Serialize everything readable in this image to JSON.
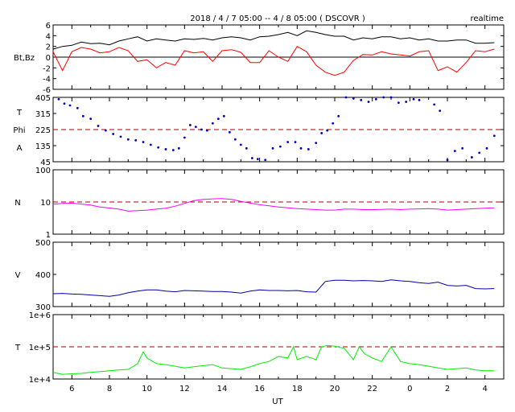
{
  "header": {
    "title": "2018 / 4 / 7   05:00 --  4 / 8   05:00 ( DSCOVR )",
    "mode": "realtime"
  },
  "x_axis": {
    "label": "UT",
    "tick_labels": [
      "6",
      "8",
      "10",
      "12",
      "14",
      "16",
      "18",
      "20",
      "22",
      "0",
      "2",
      "4"
    ]
  },
  "chart_data": [
    {
      "type": "line",
      "panel": "magnetic-field",
      "ylabel": "Bt,Bz",
      "x_range_hours": [
        5,
        29
      ],
      "ylim": [
        -6,
        6
      ],
      "yticks": [
        "6",
        "4",
        "2",
        "0",
        "-2",
        "-4",
        "-6"
      ],
      "reference_line": 0,
      "series": [
        {
          "key": "Bt",
          "color": "#000000",
          "x": [
            5.0,
            5.5,
            6.0,
            6.5,
            7.0,
            7.5,
            8.0,
            8.5,
            9.0,
            9.5,
            10.0,
            10.5,
            11.0,
            11.5,
            12.0,
            12.5,
            13.0,
            13.5,
            14.0,
            14.5,
            15.0,
            15.5,
            16.0,
            16.5,
            17.0,
            17.5,
            18.0,
            18.5,
            19.0,
            19.5,
            20.0,
            20.5,
            21.0,
            21.5,
            22.0,
            22.5,
            23.0,
            23.5,
            24.0,
            24.5,
            25.0,
            25.5,
            26.0,
            26.5,
            27.0,
            27.5,
            28.0,
            28.5
          ],
          "y": [
            1.5,
            2.0,
            2.2,
            2.8,
            2.5,
            2.6,
            2.3,
            3.0,
            3.4,
            3.8,
            3.0,
            3.4,
            3.2,
            3.0,
            3.4,
            3.3,
            3.5,
            3.2,
            3.6,
            3.8,
            3.6,
            3.2,
            3.8,
            3.9,
            4.2,
            4.6,
            4.0,
            4.9,
            4.6,
            4.2,
            3.9,
            3.9,
            3.2,
            3.6,
            3.4,
            3.8,
            3.8,
            3.4,
            3.6,
            3.2,
            3.4,
            3.0,
            3.0,
            3.2,
            3.2,
            2.6,
            2.6,
            2.7
          ]
        },
        {
          "key": "Bz",
          "color": "#ff0000",
          "x": [
            5.0,
            5.5,
            6.0,
            6.5,
            7.0,
            7.5,
            8.0,
            8.5,
            9.0,
            9.5,
            10.0,
            10.5,
            11.0,
            11.5,
            12.0,
            12.5,
            13.0,
            13.5,
            14.0,
            14.5,
            15.0,
            15.5,
            16.0,
            16.5,
            17.0,
            17.5,
            18.0,
            18.5,
            19.0,
            19.5,
            20.0,
            20.5,
            21.0,
            21.5,
            22.0,
            22.5,
            23.0,
            23.5,
            24.0,
            24.5,
            25.0,
            25.5,
            26.0,
            26.5,
            27.0,
            27.5,
            28.0,
            28.5
          ],
          "y": [
            1.0,
            -2.5,
            1.0,
            1.8,
            1.5,
            0.8,
            1.0,
            1.8,
            1.2,
            -0.8,
            -0.5,
            -2.0,
            -1.0,
            -1.5,
            1.2,
            0.8,
            1.0,
            -0.8,
            1.2,
            1.4,
            0.9,
            -1.0,
            -1.0,
            1.2,
            0.0,
            -0.8,
            2.0,
            1.0,
            -1.5,
            -2.8,
            -3.4,
            -2.8,
            -0.6,
            0.5,
            0.4,
            1.0,
            0.6,
            0.4,
            0.2,
            1.0,
            1.2,
            -2.5,
            -1.8,
            -2.8,
            -1.0,
            1.2,
            1.0,
            1.5
          ]
        }
      ]
    },
    {
      "type": "scatter",
      "panel": "phi-angle",
      "ylabel_lines": [
        "T",
        "Phi",
        "A"
      ],
      "x_range_hours": [
        5,
        29
      ],
      "ylim": [
        45,
        405
      ],
      "yticks": [
        "405",
        "315",
        "225",
        "135",
        "45"
      ],
      "reference_line": 225,
      "series": [
        {
          "key": "Phi",
          "color": "#0000cc",
          "x": [
            5.3,
            5.6,
            5.9,
            6.3,
            6.6,
            7.0,
            7.4,
            7.8,
            8.2,
            8.6,
            9.0,
            9.4,
            9.8,
            10.2,
            10.6,
            11.0,
            11.4,
            11.7,
            12.0,
            12.3,
            12.6,
            12.9,
            13.2,
            13.5,
            13.8,
            14.1,
            14.4,
            14.7,
            15.0,
            15.3,
            15.6,
            15.9,
            16.3,
            16.7,
            17.1,
            17.5,
            17.9,
            18.2,
            18.6,
            19.0,
            19.3,
            19.6,
            19.9,
            20.2,
            20.6,
            21.0,
            21.4,
            21.8,
            22.2,
            22.6,
            23.0,
            23.4,
            23.8,
            24.2,
            24.5,
            25.3,
            25.6,
            26.0,
            26.4,
            26.8,
            27.3,
            27.7,
            28.1,
            28.5
          ],
          "y": [
            395,
            370,
            360,
            345,
            300,
            285,
            245,
            220,
            200,
            185,
            170,
            165,
            155,
            140,
            125,
            115,
            110,
            120,
            180,
            250,
            240,
            225,
            220,
            260,
            285,
            300,
            210,
            170,
            140,
            120,
            65,
            60,
            55,
            120,
            130,
            155,
            155,
            120,
            115,
            150,
            205,
            220,
            260,
            300,
            405,
            400,
            390,
            380,
            395,
            405,
            405,
            375,
            380,
            395,
            390,
            365,
            330,
            55,
            105,
            120,
            70,
            95,
            120,
            190
          ]
        }
      ]
    },
    {
      "type": "line",
      "panel": "density",
      "ylabel": "N",
      "x_range_hours": [
        5,
        29
      ],
      "ylim": [
        1,
        100
      ],
      "log_scale": true,
      "yticks": [
        "100",
        "10",
        "1"
      ],
      "reference_line": 10,
      "series": [
        {
          "key": "N",
          "color": "#ff00ff",
          "x": [
            5.0,
            5.5,
            6.0,
            6.5,
            7.0,
            7.5,
            8.0,
            8.5,
            9.0,
            9.5,
            10.0,
            10.5,
            11.0,
            11.5,
            12.0,
            12.5,
            13.0,
            13.5,
            14.0,
            14.5,
            15.0,
            15.5,
            16.0,
            16.5,
            17.0,
            17.5,
            18.0,
            18.5,
            19.0,
            19.5,
            20.0,
            20.5,
            21.0,
            21.5,
            22.0,
            22.5,
            23.0,
            23.5,
            24.0,
            24.5,
            25.0,
            25.5,
            26.0,
            26.5,
            27.0,
            27.5,
            28.0,
            28.5
          ],
          "y": [
            8.5,
            9.0,
            9.2,
            8.6,
            8.0,
            7.0,
            6.5,
            6.0,
            5.2,
            5.4,
            5.6,
            6.0,
            6.4,
            7.4,
            9.0,
            11.0,
            12.0,
            12.5,
            12.8,
            12.0,
            10.5,
            9.2,
            8.2,
            7.6,
            7.0,
            6.6,
            6.2,
            6.0,
            5.8,
            5.6,
            5.6,
            6.0,
            6.0,
            5.8,
            5.8,
            5.9,
            6.0,
            5.8,
            6.0,
            6.1,
            6.2,
            6.0,
            5.6,
            5.8,
            6.0,
            6.2,
            6.4,
            6.6
          ]
        }
      ]
    },
    {
      "type": "line",
      "panel": "speed",
      "ylabel": "V",
      "x_range_hours": [
        5,
        29
      ],
      "ylim": [
        300,
        500
      ],
      "yticks": [
        "500",
        "400",
        "300"
      ],
      "series": [
        {
          "key": "V",
          "color": "#0000aa",
          "x": [
            5.0,
            5.5,
            6.0,
            6.5,
            7.0,
            7.5,
            8.0,
            8.5,
            9.0,
            9.5,
            10.0,
            10.5,
            11.0,
            11.5,
            12.0,
            12.5,
            13.0,
            13.5,
            14.0,
            14.5,
            15.0,
            15.5,
            16.0,
            16.5,
            17.0,
            17.5,
            18.0,
            18.5,
            19.0,
            19.5,
            20.0,
            20.5,
            21.0,
            21.5,
            22.0,
            22.5,
            23.0,
            23.5,
            24.0,
            24.5,
            25.0,
            25.5,
            26.0,
            26.5,
            27.0,
            27.5,
            28.0,
            28.5
          ],
          "y": [
            340,
            341,
            339,
            338,
            336,
            334,
            332,
            336,
            343,
            348,
            352,
            352,
            348,
            346,
            350,
            349,
            348,
            347,
            347,
            345,
            342,
            348,
            352,
            350,
            350,
            349,
            350,
            346,
            345,
            378,
            382,
            382,
            380,
            381,
            380,
            378,
            383,
            380,
            378,
            374,
            372,
            376,
            366,
            364,
            366,
            356,
            355,
            356
          ]
        }
      ]
    },
    {
      "type": "line",
      "panel": "temperature",
      "ylabel": "T",
      "x_range_hours": [
        5,
        29
      ],
      "ylim": [
        10000,
        1000000
      ],
      "log_scale": true,
      "yticks": [
        "1e+6",
        "1e+5",
        "1e+4"
      ],
      "reference_line": 100000,
      "series": [
        {
          "key": "T",
          "color": "#00ee00",
          "x": [
            5.0,
            5.5,
            6.0,
            6.5,
            7.0,
            7.5,
            8.0,
            8.5,
            9.0,
            9.5,
            9.8,
            10.0,
            10.5,
            11.0,
            11.5,
            12.0,
            12.5,
            13.0,
            13.5,
            14.0,
            14.5,
            15.0,
            15.5,
            16.0,
            16.5,
            17.0,
            17.5,
            17.8,
            18.0,
            18.5,
            19.0,
            19.3,
            19.6,
            20.0,
            20.5,
            21.0,
            21.3,
            21.6,
            22.0,
            22.5,
            23.0,
            23.5,
            24.0,
            24.5,
            25.0,
            25.5,
            26.0,
            26.5,
            27.0,
            27.5,
            28.0,
            28.5
          ],
          "y": [
            16000,
            14000,
            14500,
            15000,
            16000,
            17000,
            18000,
            19000,
            20000,
            30000,
            70000,
            45000,
            30000,
            28000,
            25000,
            22000,
            24000,
            26000,
            28000,
            22000,
            21000,
            20000,
            24000,
            30000,
            35000,
            50000,
            45000,
            100000,
            40000,
            50000,
            40000,
            100000,
            110000,
            105000,
            90000,
            40000,
            100000,
            60000,
            45000,
            35000,
            100000,
            35000,
            30000,
            28000,
            25000,
            22000,
            20000,
            21000,
            22000,
            19000,
            18000,
            18000
          ]
        }
      ]
    }
  ]
}
